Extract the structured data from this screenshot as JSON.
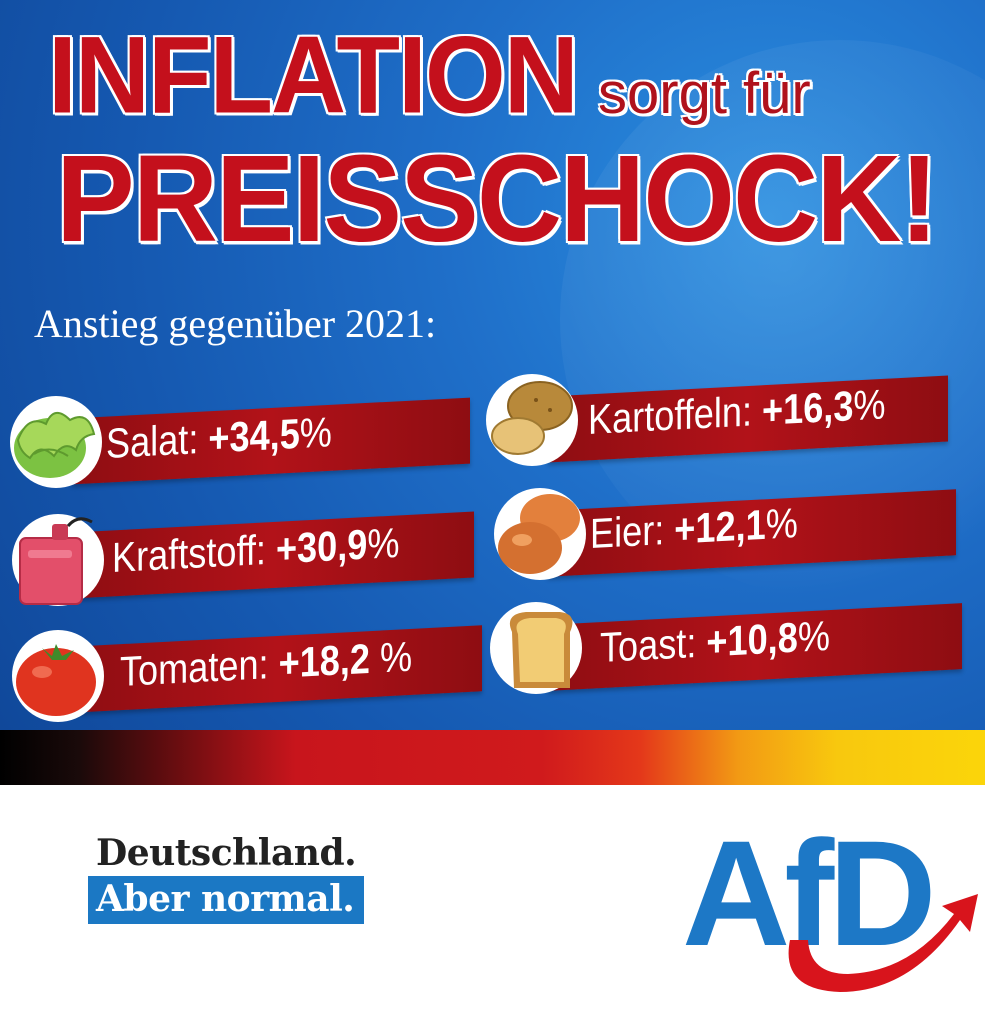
{
  "headline": {
    "line1": "INFLATION",
    "line2": "sorgt für",
    "line3": "PREISSCHOCK!"
  },
  "subtitle": "Anstieg gegenüber 2021:",
  "items": [
    {
      "label": "Salat:",
      "value": "+34,5",
      "unit": "%",
      "icon": "lettuce-icon"
    },
    {
      "label": "Kraftstoff:",
      "value": "+30,9",
      "unit": "%",
      "icon": "fuel-canister-icon"
    },
    {
      "label": "Tomaten:",
      "value": "+18,2",
      "unit": " %",
      "icon": "tomato-icon"
    },
    {
      "label": "Kartoffeln:",
      "value": "+16,3",
      "unit": "%",
      "icon": "potato-icon"
    },
    {
      "label": "Eier:",
      "value": "+12,1",
      "unit": "%",
      "icon": "egg-icon"
    },
    {
      "label": "Toast:",
      "value": "+10,8",
      "unit": "%",
      "icon": "toast-icon"
    }
  ],
  "slogan": {
    "line1": "Deutschland.",
    "line2": "Aber normal."
  },
  "logo": {
    "text": "AfD",
    "color_blue": "#1d78c6",
    "color_red": "#d8141c"
  },
  "colors": {
    "headline_red": "#c4101c",
    "band_red": "#b21219",
    "background_blue": "#1f6fc9"
  }
}
